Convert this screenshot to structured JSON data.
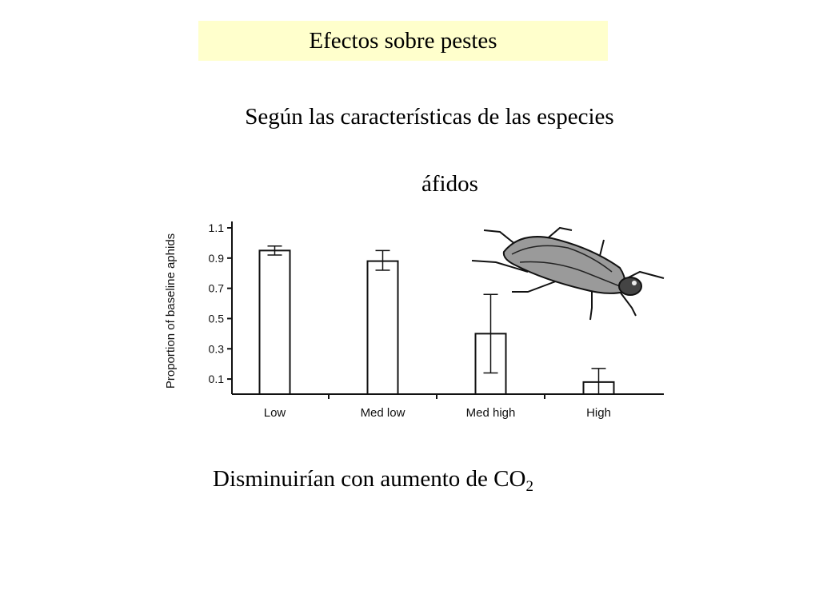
{
  "slide": {
    "title": "Efectos sobre pestes",
    "subtitle": "Según las características de las especies",
    "species": "áfidos",
    "conclusion_main": "Disminuirían con aumento de CO",
    "conclusion_sub": "2"
  },
  "chart_data": {
    "type": "bar",
    "title": "",
    "xlabel": "",
    "ylabel": "Proportion of baseline aphids",
    "categories": [
      "Low",
      "Med low",
      "Med high",
      "High"
    ],
    "values": [
      0.95,
      0.88,
      0.4,
      0.08
    ],
    "error_high": [
      0.98,
      0.95,
      0.66,
      0.17
    ],
    "error_low": [
      0.92,
      0.82,
      0.14,
      0.0
    ],
    "ylim": [
      0,
      1.1
    ],
    "yticks": [
      0.1,
      0.3,
      0.5,
      0.7,
      0.9,
      1.1
    ],
    "ytick_labels": [
      "0.1",
      "0.3",
      "0.5",
      "0.7",
      "0.9",
      "1.1"
    ],
    "grid": false,
    "legend": "none",
    "bar_fill": "#ffffff",
    "bar_stroke": "#111111"
  }
}
